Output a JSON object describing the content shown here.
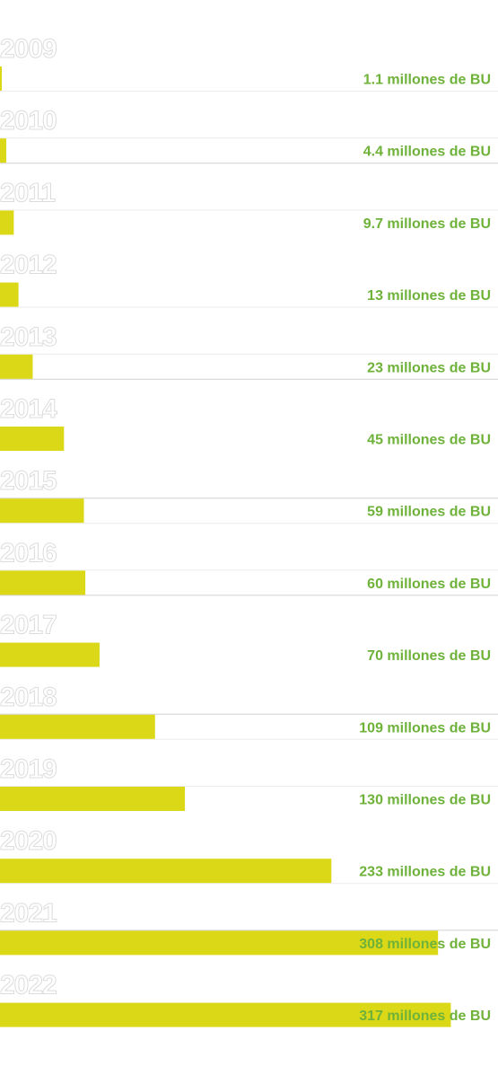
{
  "colors": {
    "bar": "#dbd917",
    "value_text": "#6fb23a",
    "year_outline": "#dcdcdc"
  },
  "chart_data": {
    "type": "bar",
    "orientation": "horizontal",
    "categories": [
      "2009",
      "2010",
      "2011",
      "2012",
      "2013",
      "2014",
      "2015",
      "2016",
      "2017",
      "2018",
      "2019",
      "2020",
      "2021",
      "2022"
    ],
    "values": [
      1.1,
      4.4,
      9.7,
      13,
      23,
      45,
      59,
      60,
      70,
      109,
      130,
      233,
      308,
      317
    ],
    "value_labels": [
      "1.1 millones de BU",
      "4.4 millones de BU",
      "9.7 millones de BU",
      "13 millones de BU",
      "23 millones de BU",
      "45 millones de BU",
      "59 millones de BU",
      "60 millones de BU",
      "70 millones de BU",
      "109 millones de BU",
      "130 millones de BU",
      "233 millones de BU",
      "308 millones de BU",
      "317 millones de BU"
    ],
    "xlim": [
      0,
      350
    ],
    "grid": false,
    "legend": "none"
  }
}
